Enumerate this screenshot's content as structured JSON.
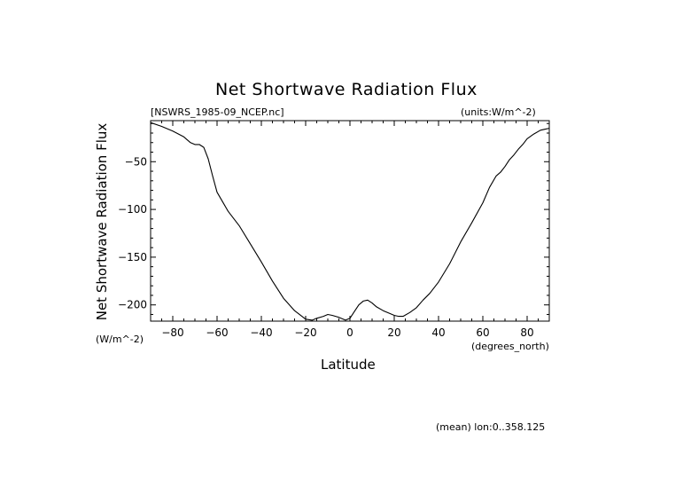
{
  "chart_data": {
    "type": "line",
    "title": "Net Shortwave Radiation Flux",
    "file_label": "[NSWRS_1985-09_NCEP.nc]",
    "units_label": "(units:W/m^-2)",
    "ylabel": "Net Shortwave Radiation Flux",
    "yunits": "(W/m^-2)",
    "xlabel": "Latitude",
    "xunits": "(degrees_north)",
    "footer": "(mean) lon:0..358.125",
    "xlim": [
      -90,
      90
    ],
    "ylim": [
      -217,
      -7
    ],
    "xticks": [
      -80,
      -60,
      -40,
      -20,
      0,
      20,
      40,
      60,
      80
    ],
    "yticks": [
      -50,
      -100,
      -150,
      -200
    ],
    "series": [
      {
        "x": [
          -90,
          -85,
          -80,
          -75,
          -72,
          -70,
          -68,
          -66,
          -64,
          -62,
          -60,
          -55,
          -50,
          -45,
          -40,
          -35,
          -30,
          -25,
          -20,
          -17,
          -15,
          -12,
          -10,
          -8,
          -5,
          -2,
          0,
          2,
          4,
          6,
          8,
          10,
          12,
          15,
          18,
          20,
          22,
          24,
          27,
          30,
          33,
          36,
          40,
          45,
          50,
          55,
          60,
          63,
          66,
          68,
          70,
          72,
          74,
          76,
          78,
          80,
          83,
          86,
          88,
          90
        ],
        "y": [
          -9,
          -13,
          -18,
          -24,
          -30,
          -32,
          -32,
          -35,
          -47,
          -65,
          -82,
          -102,
          -117,
          -136,
          -155,
          -175,
          -193,
          -206,
          -215,
          -216,
          -214,
          -212,
          -210,
          -211,
          -213,
          -216,
          -214,
          -207,
          -200,
          -196,
          -195,
          -198,
          -202,
          -206,
          -209,
          -211,
          -212,
          -212,
          -208,
          -203,
          -195,
          -188,
          -176,
          -157,
          -134,
          -114,
          -93,
          -77,
          -65,
          -61,
          -55,
          -48,
          -43,
          -37,
          -32,
          -26,
          -21,
          -17,
          -16,
          -15
        ]
      }
    ]
  }
}
